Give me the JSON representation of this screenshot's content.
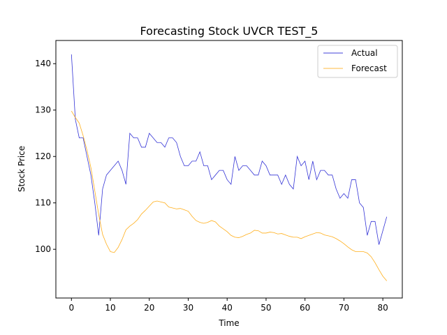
{
  "chart_data": {
    "type": "line",
    "title": "Forecasting Stock UVCR TEST_5",
    "xlabel": "Time",
    "ylabel": "Stock Price",
    "xlim": [
      -4,
      85
    ],
    "ylim": [
      89.5,
      145
    ],
    "xticks": [
      0,
      10,
      20,
      30,
      40,
      50,
      60,
      70,
      80
    ],
    "yticks": [
      100,
      110,
      120,
      130,
      140
    ],
    "grid": false,
    "legend_position": "top-right",
    "series": [
      {
        "name": "Actual",
        "color": "#0000cc",
        "values": [
          142,
          128,
          124,
          124,
          120,
          116,
          110,
          103,
          113,
          116,
          117,
          118,
          119,
          117,
          114,
          125,
          124,
          124,
          122,
          122,
          125,
          124,
          123,
          123,
          122,
          124,
          124,
          123,
          120,
          118,
          118,
          119,
          119,
          121,
          118,
          118,
          115,
          116,
          117,
          117,
          115,
          114,
          120,
          117,
          118,
          118,
          117,
          116,
          116,
          119,
          118,
          116,
          116,
          116,
          114,
          116,
          114,
          113,
          120,
          118,
          119,
          115,
          119,
          115,
          117,
          117,
          116,
          116,
          113,
          111,
          112,
          111,
          115,
          115,
          110,
          109,
          103,
          106,
          106,
          101,
          104,
          107
        ]
      },
      {
        "name": "Forecast",
        "color": "#ffa500",
        "values": [
          129.8,
          128.4,
          127.2,
          124.5,
          121.3,
          117.6,
          112.6,
          107.5,
          103.2,
          101.1,
          99.5,
          99.3,
          100.4,
          102.1,
          104.2,
          105.0,
          105.6,
          106.4,
          107.6,
          108.4,
          109.3,
          110.2,
          110.4,
          110.2,
          110.0,
          109.1,
          108.9,
          108.7,
          108.8,
          108.5,
          108.2,
          107.1,
          106.2,
          105.8,
          105.6,
          105.8,
          106.2,
          105.9,
          105.0,
          104.4,
          103.8,
          103.0,
          102.6,
          102.5,
          102.8,
          103.2,
          103.5,
          104.1,
          104.0,
          103.5,
          103.5,
          103.7,
          103.6,
          103.3,
          103.4,
          103.1,
          102.8,
          102.6,
          102.6,
          102.3,
          102.7,
          103.0,
          103.3,
          103.6,
          103.5,
          103.1,
          102.9,
          102.7,
          102.3,
          101.8,
          101.2,
          100.5,
          99.9,
          99.5,
          99.5,
          99.5,
          99.2,
          98.4,
          97.1,
          95.6,
          94.2,
          93.2
        ]
      }
    ]
  }
}
